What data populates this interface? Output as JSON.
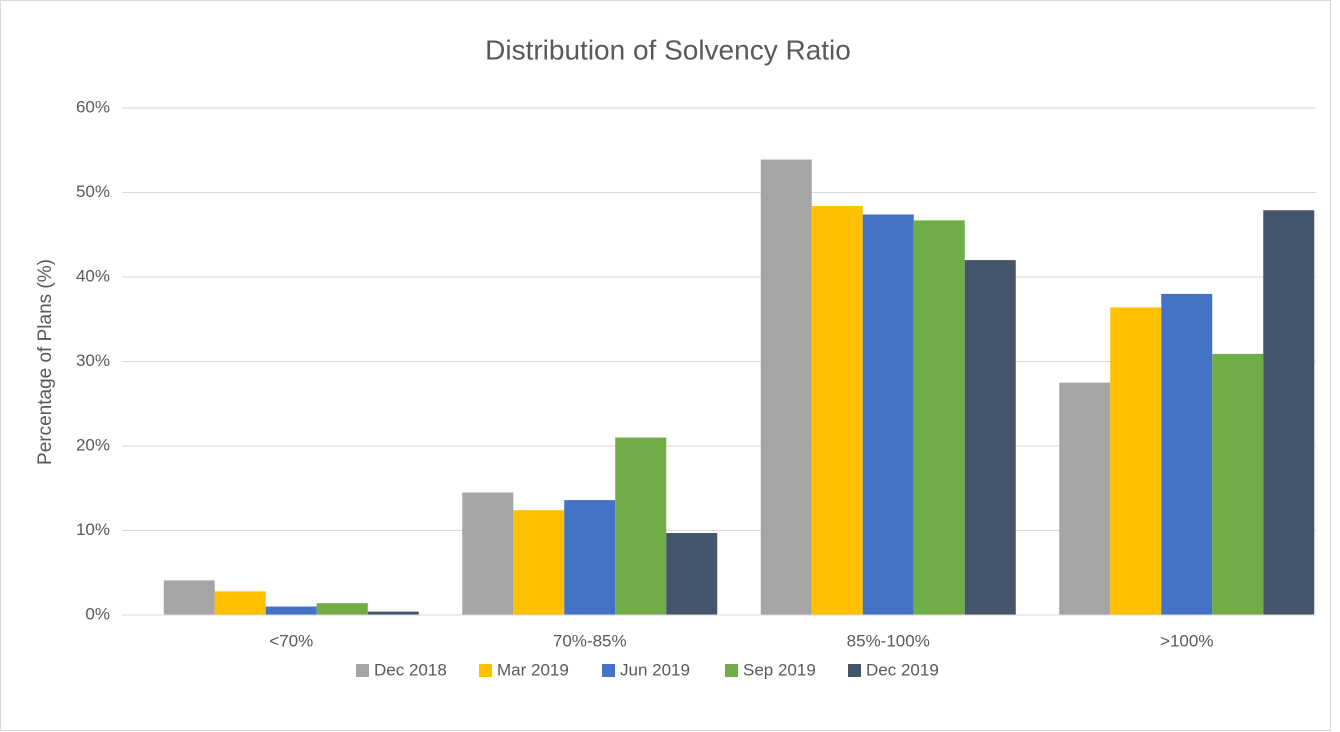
{
  "chart_data": {
    "type": "bar",
    "title": "Distribution of Solvency Ratio",
    "y_label": "Percentage of Plans (%)",
    "categories": [
      "<70%",
      "70%-85%",
      "85%-100%",
      ">100%"
    ],
    "series": [
      {
        "name": "Dec 2018",
        "color": "#a5a5a5",
        "values": [
          4.1,
          14.5,
          53.9,
          27.5
        ]
      },
      {
        "name": "Mar 2019",
        "color": "#ffc000",
        "values": [
          2.8,
          12.4,
          48.4,
          36.4
        ]
      },
      {
        "name": "Jun 2019",
        "color": "#4472c4",
        "values": [
          1.0,
          13.6,
          47.4,
          38.0
        ]
      },
      {
        "name": "Sep 2019",
        "color": "#70ad47",
        "values": [
          1.4,
          21.0,
          46.7,
          30.9
        ]
      },
      {
        "name": "Dec 2019",
        "color": "#44546a",
        "values": [
          0.4,
          9.7,
          42.0,
          47.9
        ]
      }
    ],
    "ylim": [
      0,
      60
    ],
    "yticks": [
      {
        "value": 0,
        "label": "0%"
      },
      {
        "value": 10,
        "label": "10%"
      },
      {
        "value": 20,
        "label": "20%"
      },
      {
        "value": 30,
        "label": "30%"
      },
      {
        "value": 40,
        "label": "40%"
      },
      {
        "value": 50,
        "label": "50%"
      },
      {
        "value": 60,
        "label": "60%"
      }
    ],
    "grid": true,
    "legend": "bottom"
  }
}
